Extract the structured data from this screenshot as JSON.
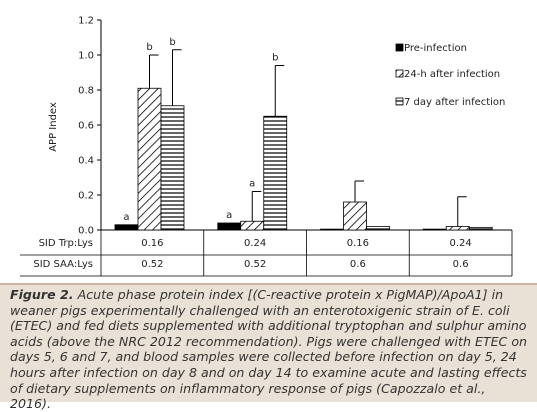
{
  "chart_data": {
    "type": "bar",
    "ylabel": "APP Index",
    "ylim": [
      0,
      1.2
    ],
    "yticks": [
      "0.0",
      "0.2",
      "0.4",
      "0.6",
      "0.8",
      "1.0",
      "1.2"
    ],
    "grid": false,
    "legend_position": "right",
    "series": [
      {
        "name": "Pre-infection",
        "pattern": "solid",
        "values": [
          0.03,
          0.04,
          0.005,
          0.005
        ],
        "errors": [
          0.0,
          0.0,
          0.0,
          0.0
        ],
        "labels": [
          "a",
          "a",
          "",
          ""
        ]
      },
      {
        "name": "24-h after infection",
        "pattern": "diagonal",
        "values": [
          0.81,
          0.05,
          0.16,
          0.02
        ],
        "errors": [
          0.19,
          0.17,
          0.12,
          0.17
        ],
        "labels": [
          "b",
          "a",
          "",
          ""
        ]
      },
      {
        "name": "7 day after infection",
        "pattern": "horizontal",
        "values": [
          0.71,
          0.65,
          0.02,
          0.015
        ],
        "errors": [
          0.32,
          0.29,
          0.0,
          0.0
        ],
        "labels": [
          "b",
          "b",
          "",
          ""
        ]
      }
    ],
    "table_rows": [
      {
        "label": "SID Trp:Lys",
        "values": [
          "0.16",
          "0.24",
          "0.16",
          "0.24"
        ]
      },
      {
        "label": "SID SAA:Lys",
        "values": [
          "0.52",
          "0.52",
          "0.6",
          "0.6"
        ]
      }
    ]
  },
  "caption": {
    "figure_label": "Figure 2.",
    "text": " Acute phase protein index [(C-reactive protein x PigMAP)/ApoA1] in weaner pigs experimentally challenged with an enterotoxigenic strain of E. coli (ETEC) and fed diets supplemented with additional tryptophan and sulphur amino acids (above the NRC 2012 recommendation). Pigs were challenged with ETEC on days 5, 6 and 7, and blood samples were collected before infection on day 5, 24 hours after infection on day 8 and on day 14 to examine acute and lasting effects of dietary supplements on inflammatory response of pigs (Capozzalo et al., 2016)."
  }
}
